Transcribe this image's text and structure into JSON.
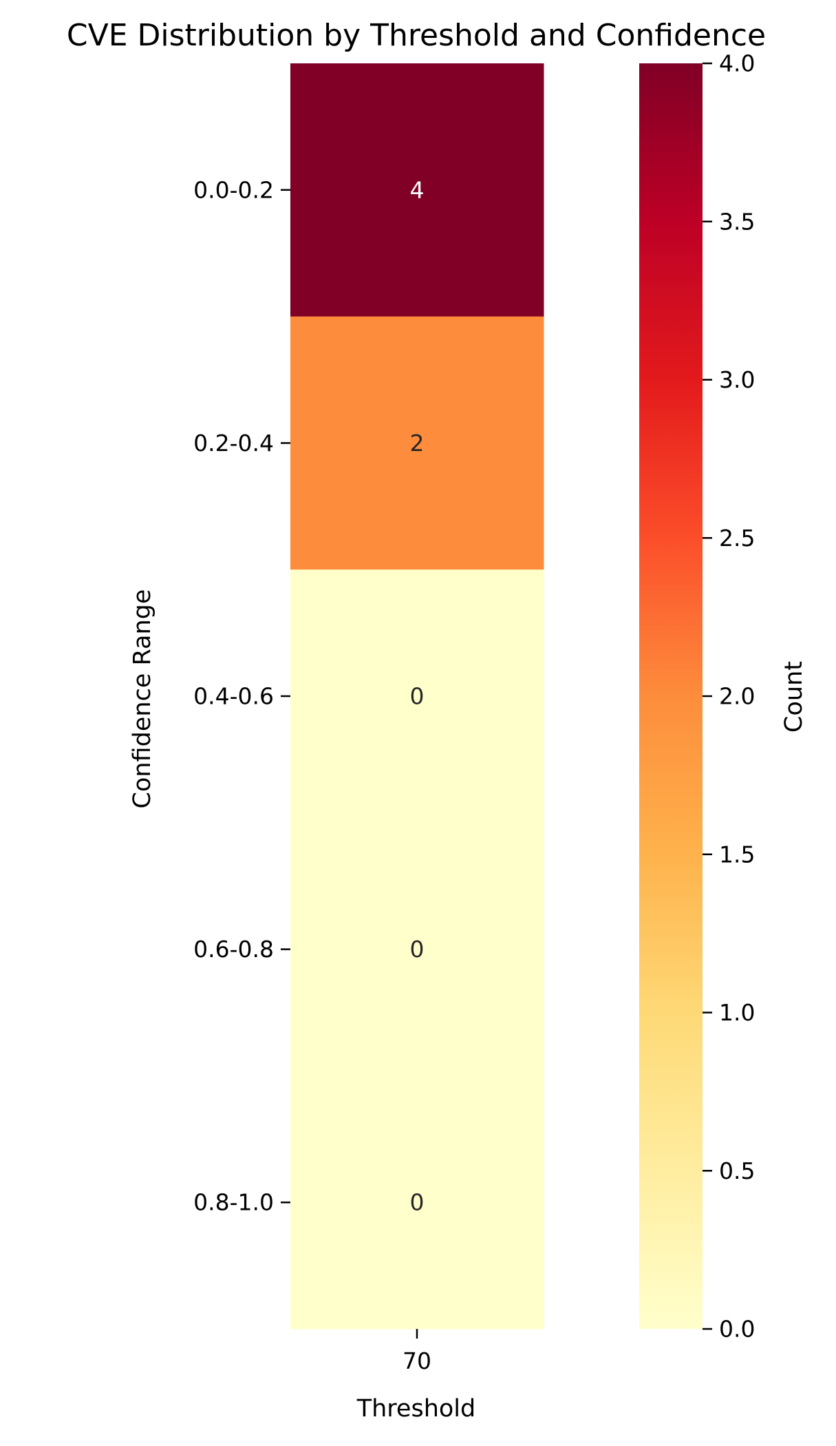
{
  "chart_data": {
    "type": "heatmap",
    "title": "CVE Distribution by Threshold and Confidence",
    "xlabel": "Threshold",
    "ylabel": "Confidence Range",
    "x_categories": [
      "70"
    ],
    "y_categories": [
      "0.0-0.2",
      "0.2-0.4",
      "0.4-0.6",
      "0.6-0.8",
      "0.8-1.0"
    ],
    "values": [
      [
        4
      ],
      [
        2
      ],
      [
        0
      ],
      [
        0
      ],
      [
        0
      ]
    ],
    "annotations": true,
    "colormap": "YlOrRd",
    "colorbar": {
      "label": "Count",
      "range": [
        0,
        4
      ],
      "ticks": [
        "0.0",
        "0.5",
        "1.0",
        "1.5",
        "2.0",
        "2.5",
        "3.0",
        "3.5",
        "4.0"
      ]
    }
  }
}
